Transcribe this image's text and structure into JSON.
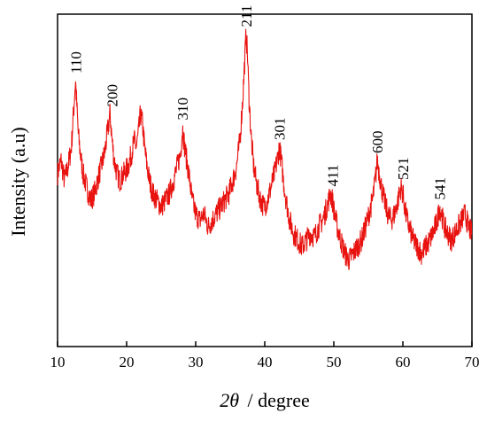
{
  "chart_data": {
    "type": "line",
    "title": "",
    "xlabel_symbol": "2θ",
    "xlabel_unit": "/ degree",
    "ylabel": "Intensity (a.u)",
    "xlim": [
      10,
      70
    ],
    "ylim": [
      0,
      100
    ],
    "xticks": [
      10,
      20,
      30,
      40,
      50,
      60,
      70
    ],
    "xtick_labels": [
      "10",
      "20",
      "30",
      "40",
      "50",
      "60",
      "70"
    ],
    "y_ticks_shown": false,
    "grid": false,
    "legend": "none",
    "series": [
      {
        "color": "#e8120f",
        "x": [
          10.0,
          10.5,
          11.0,
          11.5,
          12.0,
          12.3,
          12.6,
          12.8,
          13.0,
          13.3,
          13.7,
          14.2,
          14.8,
          15.3,
          15.8,
          16.3,
          16.8,
          17.2,
          17.6,
          17.9,
          18.2,
          18.6,
          19.0,
          19.6,
          20.2,
          20.7,
          21.1,
          21.4,
          21.7,
          22.0,
          22.3,
          22.6,
          22.9,
          23.3,
          23.8,
          24.4,
          25.0,
          25.6,
          26.2,
          26.8,
          27.3,
          27.8,
          28.1,
          28.4,
          28.7,
          29.0,
          29.5,
          30.0,
          30.6,
          31.2,
          31.8,
          32.4,
          33.0,
          33.6,
          34.2,
          34.8,
          35.4,
          35.9,
          36.4,
          36.8,
          37.1,
          37.3,
          37.5,
          37.7,
          38.0,
          38.4,
          38.9,
          39.4,
          39.9,
          40.4,
          40.9,
          41.4,
          41.8,
          42.1,
          42.4,
          42.7,
          43.1,
          43.6,
          44.2,
          44.8,
          45.4,
          46.0,
          46.6,
          47.2,
          47.8,
          48.4,
          49.0,
          49.5,
          49.8,
          50.1,
          50.5,
          51.0,
          51.6,
          52.2,
          52.8,
          53.4,
          54.0,
          54.6,
          55.1,
          55.6,
          56.0,
          56.3,
          56.6,
          56.9,
          57.3,
          57.8,
          58.3,
          58.8,
          59.3,
          59.7,
          60.0,
          60.4,
          60.9,
          61.5,
          62.1,
          62.7,
          63.3,
          63.9,
          64.5,
          65.0,
          65.3,
          65.6,
          66.0,
          66.5,
          67.0,
          67.5,
          68.0,
          68.5,
          69.0,
          69.5,
          70.0
        ],
        "y": [
          52,
          56,
          50,
          54,
          60,
          70,
          80,
          72,
          64,
          58,
          52,
          48,
          44,
          46,
          50,
          54,
          58,
          64,
          70,
          62,
          56,
          52,
          50,
          52,
          54,
          58,
          62,
          60,
          64,
          70,
          67,
          60,
          55,
          50,
          46,
          44,
          42,
          44,
          46,
          50,
          54,
          58,
          66,
          60,
          56,
          52,
          44,
          40,
          38,
          40,
          36,
          38,
          40,
          42,
          44,
          46,
          50,
          54,
          62,
          74,
          86,
          94,
          88,
          76,
          64,
          54,
          48,
          44,
          42,
          44,
          48,
          52,
          56,
          60,
          56,
          50,
          44,
          38,
          34,
          32,
          30,
          32,
          34,
          33,
          36,
          38,
          42,
          46,
          44,
          40,
          36,
          32,
          28,
          26,
          28,
          30,
          32,
          36,
          40,
          44,
          50,
          56,
          52,
          48,
          44,
          40,
          38,
          40,
          44,
          48,
          46,
          40,
          36,
          32,
          30,
          28,
          30,
          32,
          35,
          38,
          42,
          40,
          36,
          34,
          32,
          34,
          36,
          38,
          40,
          36,
          34
        ]
      }
    ],
    "annotations": [
      {
        "text": "110",
        "x": 12.6,
        "y": 80
      },
      {
        "text": "200",
        "x": 17.9,
        "y": 70
      },
      {
        "text": "310",
        "x": 28.1,
        "y": 66
      },
      {
        "text": "211",
        "x": 37.3,
        "y": 94
      },
      {
        "text": "301",
        "x": 42.1,
        "y": 60
      },
      {
        "text": "411",
        "x": 49.8,
        "y": 46
      },
      {
        "text": "600",
        "x": 56.3,
        "y": 56
      },
      {
        "text": "521",
        "x": 60.0,
        "y": 48
      },
      {
        "text": "541",
        "x": 65.3,
        "y": 42
      }
    ]
  }
}
